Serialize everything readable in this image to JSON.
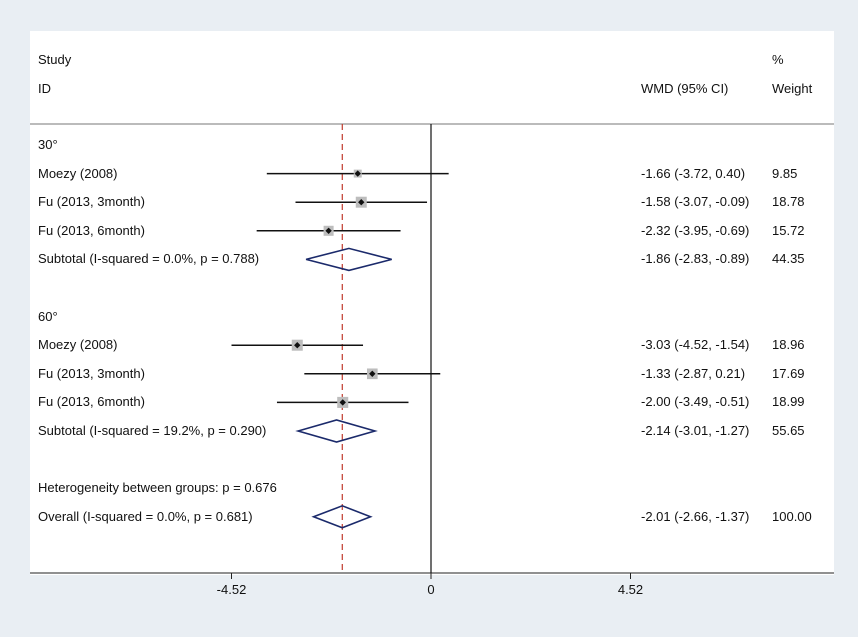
{
  "headers": {
    "study": "Study",
    "id": "ID",
    "percent": "%",
    "weight": "Weight",
    "wmd": "WMD (95% CI)"
  },
  "colors": {
    "background": "#e9eef3",
    "panel": "#ffffff",
    "diamond": "#1b2a6b",
    "box": "#bdbdbd",
    "ref_line": "#c0392b",
    "ci": "#111111"
  },
  "chart_data": {
    "type": "forest",
    "xticks": [
      -4.52,
      0,
      4.52
    ],
    "xtick_labels": [
      "-4.52",
      "0",
      "4.52"
    ],
    "x_range": [
      -8.95,
      9.1
    ],
    "pooled_reference": -2.01,
    "rows": [
      {
        "kind": "group",
        "label": "30°"
      },
      {
        "kind": "study",
        "label": "Moezy (2008)",
        "est": -1.66,
        "lo": -3.72,
        "hi": 0.4,
        "weight": 9.85,
        "ci_text": "-1.66 (-3.72, 0.40)",
        "weight_text": "9.85"
      },
      {
        "kind": "study",
        "label": "Fu (2013, 3month)",
        "est": -1.58,
        "lo": -3.07,
        "hi": -0.09,
        "weight": 18.78,
        "ci_text": "-1.58 (-3.07, -0.09)",
        "weight_text": "18.78"
      },
      {
        "kind": "study",
        "label": "Fu (2013, 6month)",
        "est": -2.32,
        "lo": -3.95,
        "hi": -0.69,
        "weight": 15.72,
        "ci_text": "-2.32 (-3.95, -0.69)",
        "weight_text": "15.72"
      },
      {
        "kind": "subtotal",
        "label": "Subtotal  (I-squared = 0.0%, p = 0.788)",
        "est": -1.86,
        "lo": -2.83,
        "hi": -0.89,
        "ci_text": "-1.86 (-2.83, -0.89)",
        "weight_text": "44.35"
      },
      {
        "kind": "blank"
      },
      {
        "kind": "group",
        "label": "60°"
      },
      {
        "kind": "study",
        "label": "Moezy (2008)",
        "est": -3.03,
        "lo": -4.52,
        "hi": -1.54,
        "weight": 18.96,
        "ci_text": "-3.03 (-4.52, -1.54)",
        "weight_text": "18.96"
      },
      {
        "kind": "study",
        "label": "Fu (2013, 3month)",
        "est": -1.33,
        "lo": -2.87,
        "hi": 0.21,
        "weight": 17.69,
        "ci_text": "-1.33 (-2.87, 0.21)",
        "weight_text": "17.69"
      },
      {
        "kind": "study",
        "label": "Fu (2013, 6month)",
        "est": -2.0,
        "lo": -3.49,
        "hi": -0.51,
        "weight": 18.99,
        "ci_text": "-2.00 (-3.49, -0.51)",
        "weight_text": "18.99"
      },
      {
        "kind": "subtotal",
        "label": "Subtotal  (I-squared = 19.2%, p = 0.290)",
        "est": -2.14,
        "lo": -3.01,
        "hi": -1.27,
        "ci_text": "-2.14 (-3.01, -1.27)",
        "weight_text": "55.65"
      },
      {
        "kind": "blank"
      },
      {
        "kind": "note",
        "label": "Heterogeneity between groups: p = 0.676"
      },
      {
        "kind": "overall",
        "label": "Overall  (I-squared = 0.0%, p = 0.681)",
        "est": -2.01,
        "lo": -2.66,
        "hi": -1.37,
        "ci_text": "-2.01 (-2.66, -1.37)",
        "weight_text": "100.00"
      }
    ]
  }
}
